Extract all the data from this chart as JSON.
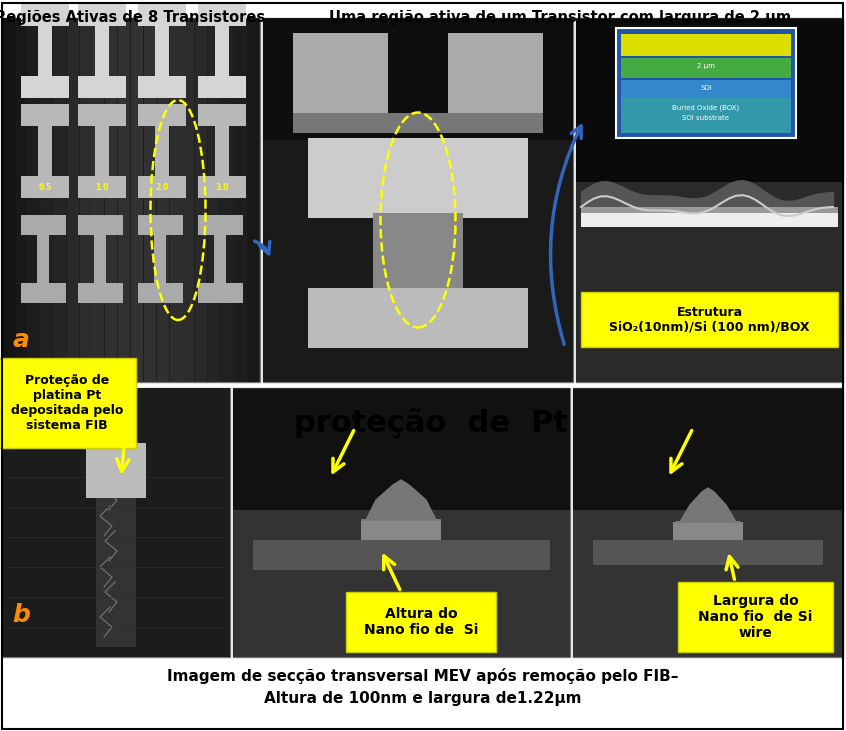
{
  "title_left": "Regiões Ativas de 8 Transistores",
  "title_right": "Uma região ativa de um Transistor com largura de 2 μm",
  "caption_line1": "Imagem de secção transversal MEV após remoção pelo FIB–",
  "caption_line2": "Altura de 100nm e largura de1.22μm",
  "label_a": "a",
  "label_b": "b",
  "annotation_top_right": "Estrutura\nSiO₂(10nm)/Si (100 nm)/BOX",
  "annotation_left_bottom": "Proteção de\nplatina Pt\ndepositada pelo\nsistema FIB",
  "annotation_center_large": "proteção  de  Pt",
  "annotation_height": "Altura do\nNano fio de  Si",
  "annotation_width": "Largura do\nNano fio  de Si\nwire",
  "background_color": "#ffffff",
  "yellow_color": "#ffff00",
  "arrow_blue": "#3366bb",
  "arrow_yellow": "#ffff00",
  "label_color_a": "#ff8c00",
  "label_color_b": "#ff8c00",
  "panel_border": "#777777",
  "inset_bg": "#2255aa",
  "inset_yellow_stripe": "#ffee00",
  "inset_green_stripe": "#44aa44",
  "inset_blue_stripe": "#3388cc"
}
